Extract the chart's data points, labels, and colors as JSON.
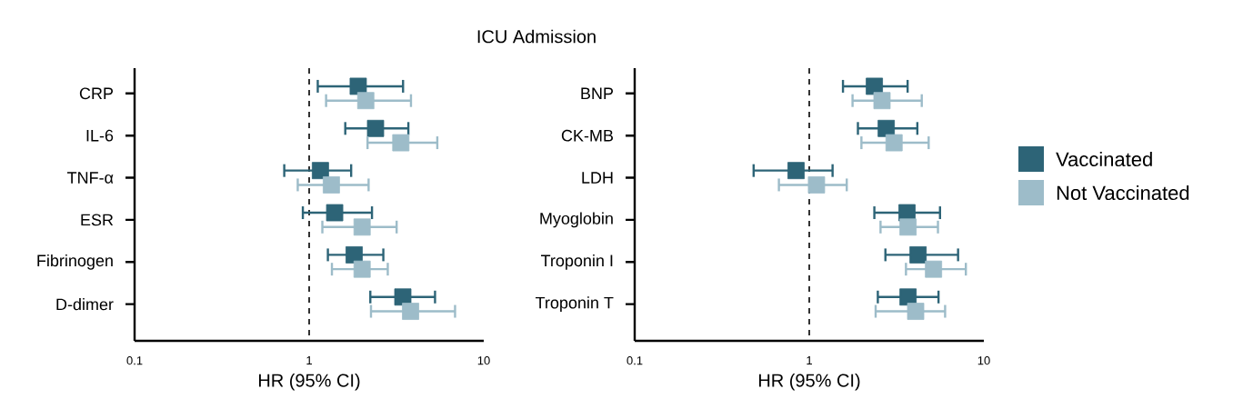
{
  "chart_data": [
    {
      "type": "scatter",
      "title": "ICU Admission",
      "orientation": "horizontal",
      "categories": [
        "CRP",
        "IL-6",
        "TNF-α",
        "ESR",
        "Fibrinogen",
        "D-dimer"
      ],
      "series": [
        {
          "name": "Vaccinated",
          "color": "#2d6477",
          "values": [
            1.91,
            2.4,
            1.16,
            1.4,
            1.81,
            3.44
          ],
          "errors": [
            [
              1.12,
              3.45
            ],
            [
              1.61,
              3.7
            ],
            [
              0.72,
              1.74
            ],
            [
              0.92,
              2.29
            ],
            [
              1.28,
              2.66
            ],
            [
              2.24,
              5.26
            ]
          ]
        },
        {
          "name": "Not Vaccinated",
          "color": "#9dbcc9",
          "values": [
            2.11,
            3.35,
            1.34,
            2.01,
            2.01,
            3.81
          ],
          "errors": [
            [
              1.25,
              3.83
            ],
            [
              2.16,
              5.42
            ],
            [
              0.86,
              2.19
            ],
            [
              1.19,
              3.17
            ],
            [
              1.35,
              2.82
            ],
            [
              2.26,
              6.85
            ]
          ]
        }
      ],
      "log": "x",
      "xlim": [
        0.1,
        10
      ],
      "xticks": [
        0.1,
        1,
        10
      ],
      "xlabel": "HR (95% CI)",
      "marker": "square",
      "legend": "right",
      "ref_lines": [
        {
          "axis": "x",
          "value": 1,
          "line_style": "dashed"
        }
      ]
    },
    {
      "type": "scatter",
      "orientation": "horizontal",
      "categories": [
        "BNP",
        "CK-MB",
        "LDH",
        "Myoglobin",
        "Troponin I",
        "Troponin T"
      ],
      "series": [
        {
          "color": "#2d6477",
          "values": [
            2.36,
            2.76,
            0.84,
            3.63,
            4.2,
            3.68
          ],
          "errors": [
            [
              1.56,
              3.66
            ],
            [
              1.9,
              4.16
            ],
            [
              0.48,
              1.36
            ],
            [
              2.36,
              5.61
            ],
            [
              2.73,
              7.12
            ],
            [
              2.47,
              5.5
            ]
          ]
        },
        {
          "color": "#9dbcc9",
          "values": [
            2.61,
            3.06,
            1.1,
            3.68,
            5.15,
            4.07
          ],
          "errors": [
            [
              1.77,
              4.41
            ],
            [
              1.99,
              4.83
            ],
            [
              0.67,
              1.64
            ],
            [
              2.56,
              5.46
            ],
            [
              3.58,
              7.89
            ],
            [
              2.4,
              6.0
            ]
          ]
        }
      ],
      "log": "x",
      "xlim": [
        0.1,
        10
      ],
      "xticks": [
        0.1,
        1,
        10
      ],
      "xlabel": "HR (95% CI)",
      "marker": "square",
      "ref_lines": [
        {
          "axis": "x",
          "value": 1,
          "line_style": "dashed"
        }
      ]
    }
  ]
}
